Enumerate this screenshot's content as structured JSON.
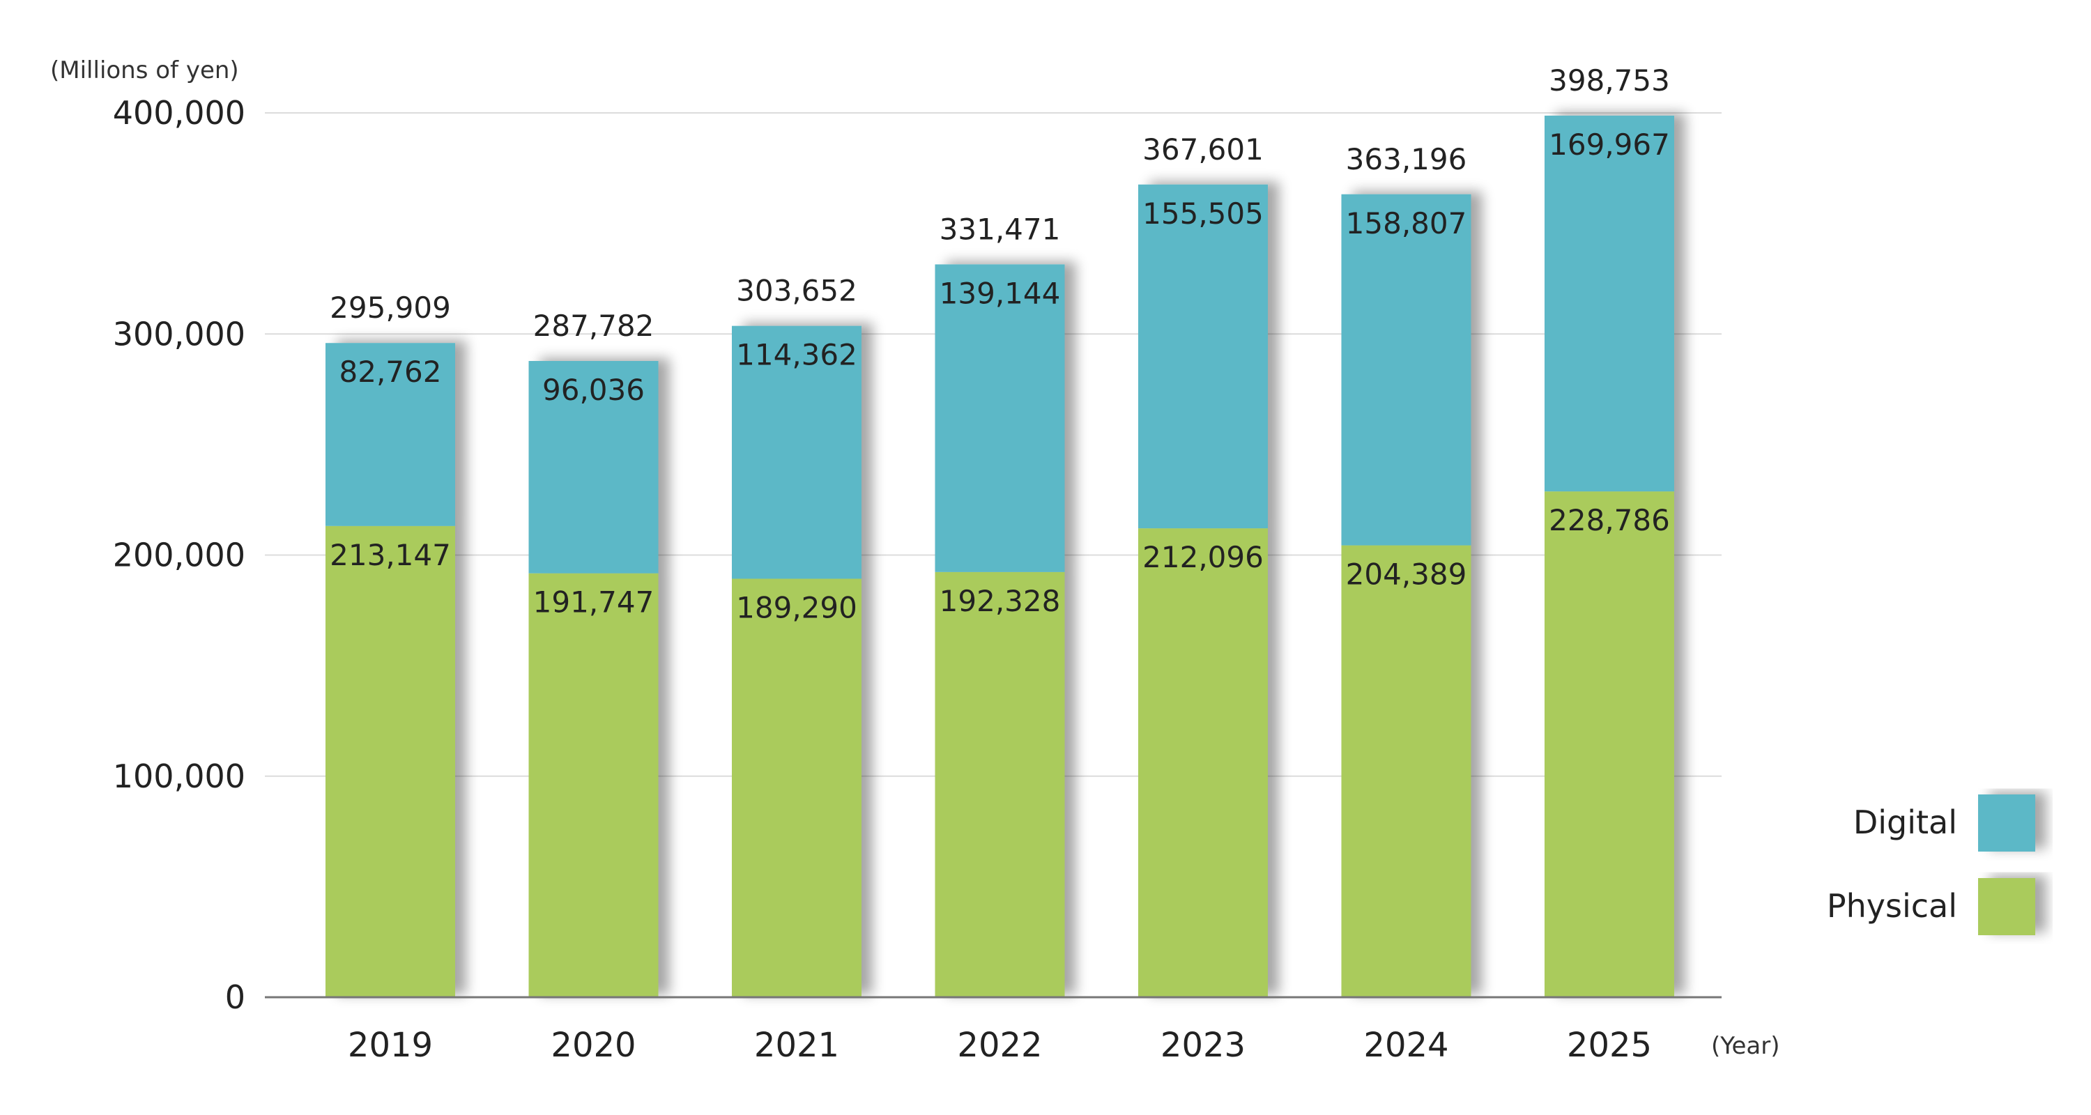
{
  "chart_data": {
    "type": "bar",
    "stacked": true,
    "ylabel": "(Millions of yen)",
    "xlabel": "(Year)",
    "ylim": [
      0,
      400000
    ],
    "y_ticks": [
      "0",
      "100,000",
      "200,000",
      "300,000",
      "400,000"
    ],
    "grid": true,
    "legend_position": "right",
    "categories": [
      "2019",
      "2020",
      "2021",
      "2022",
      "2023",
      "2024",
      "2025"
    ],
    "series": [
      {
        "name": "Physical",
        "color": "#aacb5c",
        "values": [
          213147,
          191747,
          189290,
          192328,
          212096,
          204389,
          228786
        ],
        "labels": [
          "213,147",
          "191,747",
          "189,290",
          "192,328",
          "212,096",
          "204,389",
          "228,786"
        ]
      },
      {
        "name": "Digital",
        "color": "#5bb8c7",
        "values": [
          82762,
          96036,
          114362,
          139144,
          155505,
          158807,
          169967
        ],
        "labels": [
          "82,762",
          "96,036",
          "114,362",
          "139,144",
          "155,505",
          "158,807",
          "169,967"
        ]
      }
    ],
    "totals": [
      295909,
      287782,
      303652,
      331471,
      367601,
      363196,
      398753
    ],
    "total_labels": [
      "295,909",
      "287,782",
      "303,652",
      "331,471",
      "367,601",
      "363,196",
      "398,753"
    ],
    "legend": [
      {
        "label": "Digital",
        "color": "#5bb8c7"
      },
      {
        "label": "Physical",
        "color": "#aacb5c"
      }
    ]
  }
}
